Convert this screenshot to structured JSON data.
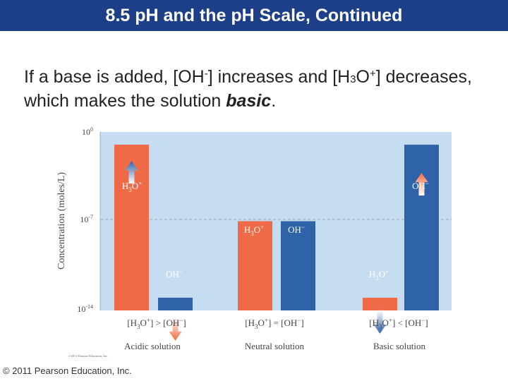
{
  "slide": {
    "title": "8.5 pH and the pH Scale, Continued",
    "body": {
      "part1": "If a base is added, [OH",
      "sup1": "-",
      "part2": "] increases and [H",
      "sub1": "3",
      "part3": "O",
      "sup2": "+",
      "part4": "] decreases, which makes the solution ",
      "emphasis": "basic",
      "end": "."
    },
    "copyright": "© 2011 Pearson Education, Inc."
  },
  "colors": {
    "title_bg": "#1d3f87",
    "chart_bg": "#c6dcf0",
    "h3o_bar": "#ef6b47",
    "oh_bar": "#2e63a8"
  },
  "chart_data": {
    "type": "bar",
    "title": "",
    "ylabel": "Concentration (moles/L)",
    "y_scale": "log",
    "y_ticks": [
      {
        "value": 1,
        "base": "10",
        "exp": "0"
      },
      {
        "value": 1e-07,
        "base": "10",
        "exp": "-7"
      },
      {
        "value": 1e-14,
        "base": "10",
        "exp": "-14"
      }
    ],
    "ylim": [
      1e-14,
      1
    ],
    "grid": "dashed line at 10^-7",
    "categories": [
      "Acidic solution",
      "Neutral solution",
      "Basic solution"
    ],
    "relations": [
      "[H3O+] > [OH-]",
      "[H3O+] = [OH-]",
      "[H3O+] < [OH-]"
    ],
    "series": [
      {
        "name": "H3O+",
        "values": [
          0.1,
          1e-07,
          1e-13
        ],
        "arrows": [
          "up",
          "",
          "down"
        ]
      },
      {
        "name": "OH-",
        "values": [
          1e-13,
          1e-07,
          0.1
        ],
        "arrows": [
          "down",
          "",
          "up"
        ]
      }
    ],
    "small_copyright": "©2011 Pearson Education, Inc."
  }
}
